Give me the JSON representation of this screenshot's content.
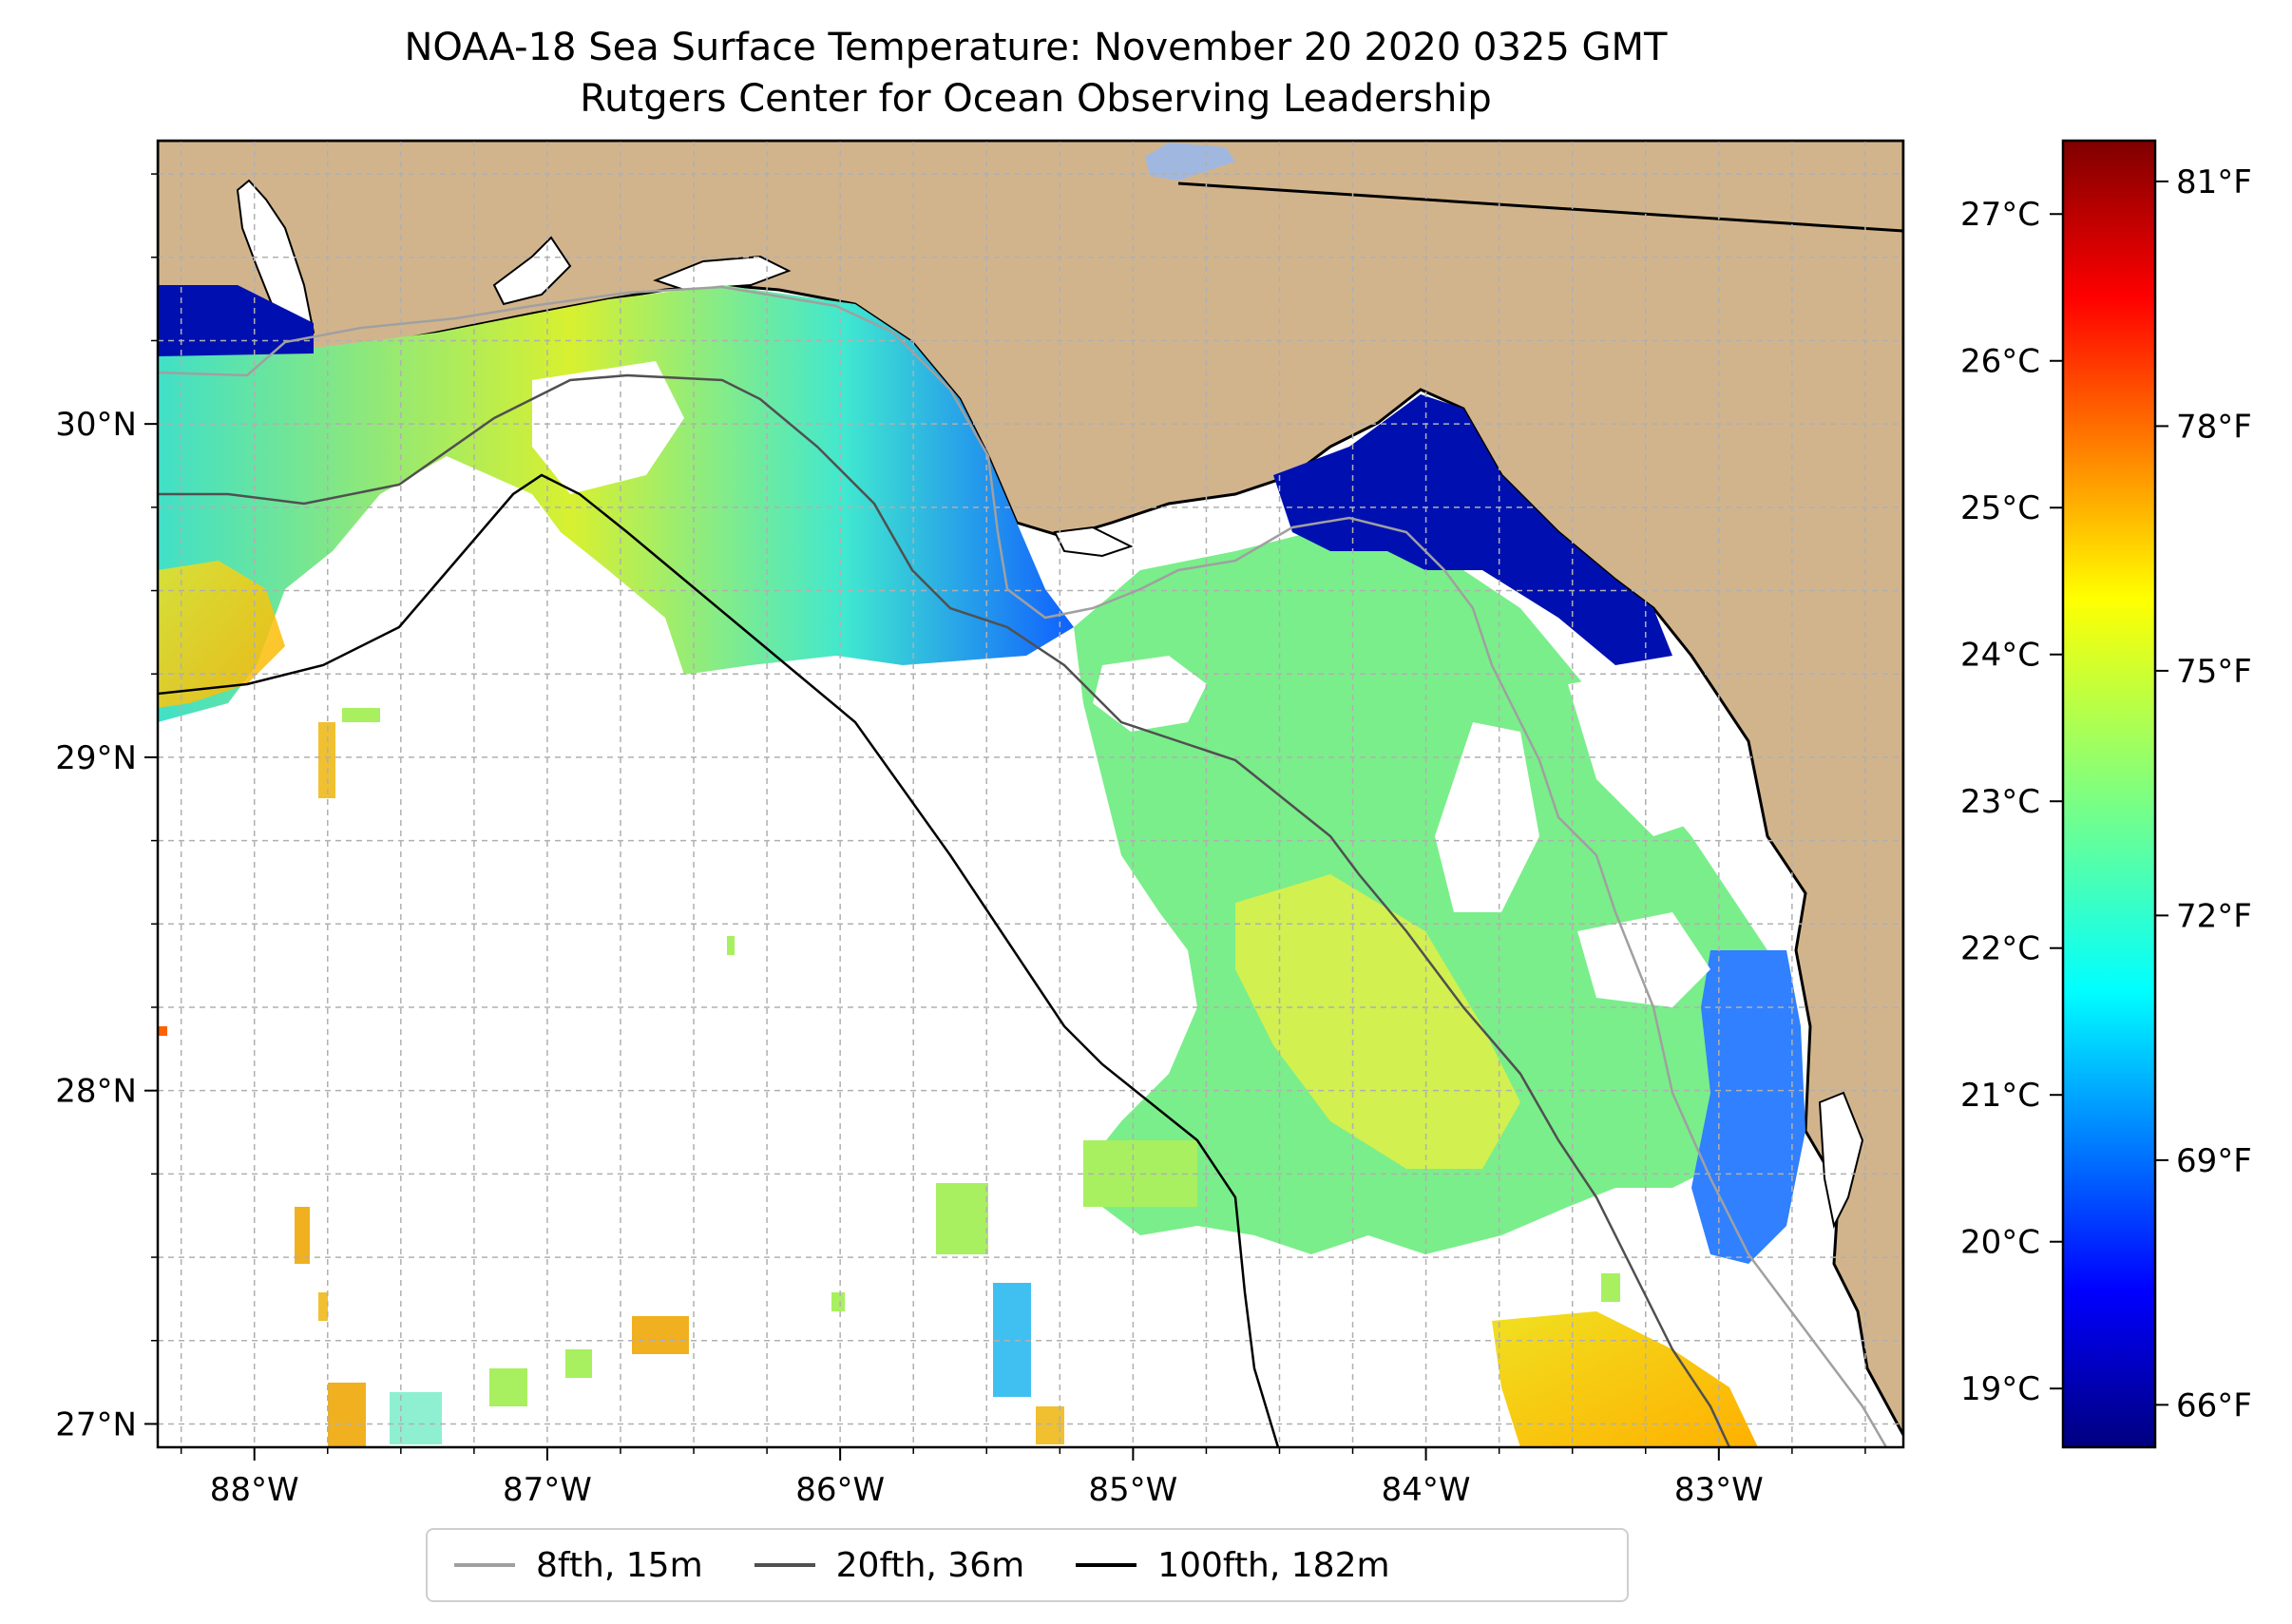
{
  "title": {
    "line1": "NOAA-18 Sea Surface Temperature: November 20 2020 0325 GMT",
    "line2": "Rutgers Center for Ocean Observing Leadership"
  },
  "map": {
    "lon_range": [
      -88.33,
      -82.37
    ],
    "lat_range": [
      26.93,
      30.85
    ],
    "lon_ticks": [
      "88°W",
      "87°W",
      "86°W",
      "85°W",
      "84°W",
      "83°W"
    ],
    "lat_ticks": [
      "30°N",
      "29°N",
      "28°N",
      "27°N"
    ],
    "land_color": "#d2b48c",
    "water_no_data_color": "#ffffff",
    "grid": true
  },
  "colorbar": {
    "celsius_ticks": [
      "19°C",
      "20°C",
      "21°C",
      "22°C",
      "23°C",
      "24°C",
      "25°C",
      "26°C",
      "27°C"
    ],
    "fahrenheit_ticks": [
      "66°F",
      "69°F",
      "72°F",
      "75°F",
      "78°F",
      "81°F"
    ],
    "range_c": [
      18.6,
      27.5
    ],
    "colormap": "jet"
  },
  "legend": {
    "items": [
      {
        "label": "8fth, 15m",
        "color": "#a0a0a0"
      },
      {
        "label": "20fth, 36m",
        "color": "#505050"
      },
      {
        "label": "100fth, 182m",
        "color": "#000000"
      }
    ]
  }
}
